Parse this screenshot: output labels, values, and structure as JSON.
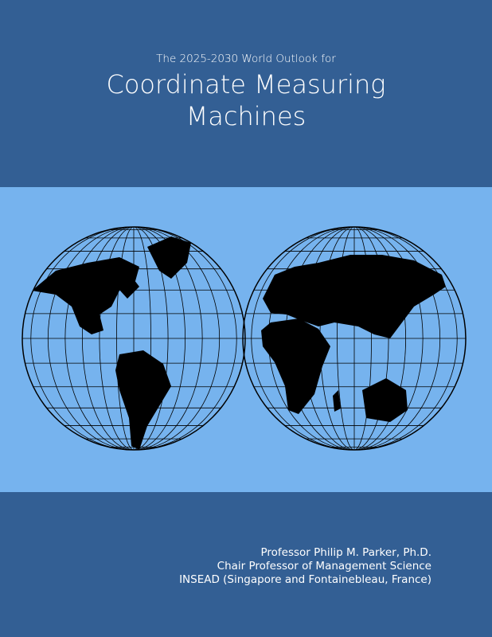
{
  "cover": {
    "subtitle": "The 2025-2030 World Outlook for",
    "title_line1": "Coordinate Measuring",
    "title_line2": "Machines",
    "author_name": "Professor Philip M. Parker, Ph.D.",
    "author_title": "Chair Professor of Management Science",
    "author_affiliation": "INSEAD (Singapore and Fontainebleau, France)"
  },
  "colors": {
    "dark_band": "#335f94",
    "light_band": "#76b3ee",
    "land": "#000000"
  },
  "illustration": "world-map-globes-icon"
}
